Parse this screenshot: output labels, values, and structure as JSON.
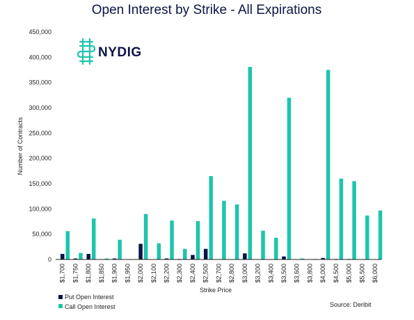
{
  "brand": {
    "name": "NYDIG",
    "logo_color": "#1fc4ad"
  },
  "source": "Source: Deribit",
  "colors": {
    "put": "#0c1446",
    "call": "#1fc4ad",
    "axis": "#222222"
  },
  "chart_data": {
    "type": "bar",
    "title": "Open Interest by Strike - All Expirations",
    "xlabel": "Strike Price",
    "ylabel": "Number of Contracts",
    "ylim": [
      0,
      450000
    ],
    "yticks": [
      "0",
      "50,000",
      "100,000",
      "150,000",
      "200,000",
      "250,000",
      "300,000",
      "350,000",
      "400,000",
      "450,000"
    ],
    "grid": false,
    "legend_position": "bottom-left",
    "categories": [
      "$1,700",
      "$1,750",
      "$1,800",
      "$1,850",
      "$1,900",
      "$1,950",
      "$2,000",
      "$2,100",
      "$2,200",
      "$2,300",
      "$2,400",
      "$2,500",
      "$2,700",
      "$2,800",
      "$3,000",
      "$3,200",
      "$3,400",
      "$3,500",
      "$3,600",
      "$3,800",
      "$4,000",
      "$4,500",
      "$5,000",
      "$5,500",
      "$6,000"
    ],
    "series": [
      {
        "name": "Put Open Interest",
        "color": "#0c1446",
        "values": [
          11000,
          2000,
          11000,
          500,
          2000,
          0,
          31000,
          0,
          2000,
          1000,
          9000,
          21000,
          0,
          0,
          12000,
          0,
          0,
          6000,
          0,
          0,
          3000,
          1000,
          1000,
          0,
          0
        ]
      },
      {
        "name": "Call Open Interest",
        "color": "#1fc4ad",
        "values": [
          56000,
          13000,
          81000,
          2000,
          39000,
          0,
          90000,
          32000,
          77000,
          21000,
          76000,
          165000,
          116000,
          109000,
          381000,
          57000,
          43000,
          320000,
          2000,
          1000,
          375000,
          160000,
          155000,
          87000,
          97000
        ]
      }
    ]
  }
}
